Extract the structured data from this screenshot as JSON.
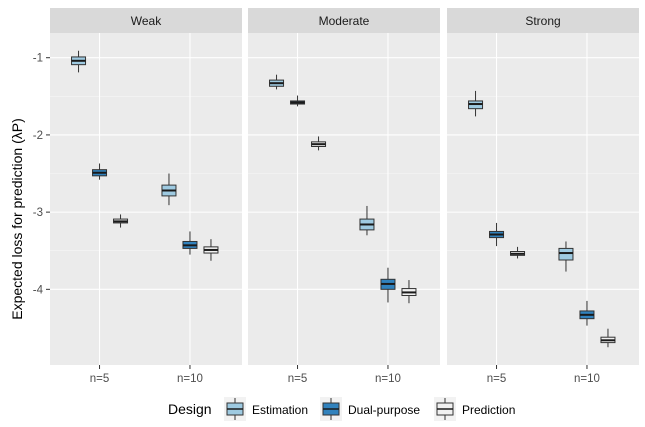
{
  "chart_data": {
    "type": "boxplot",
    "ylabel": "Expected loss for prediction (λP)",
    "ylim": [
      -4.98,
      -0.68
    ],
    "yticks": [
      -1,
      -2,
      -3,
      -4
    ],
    "ytick_labels": [
      "-1",
      "-2",
      "-3",
      "-4"
    ],
    "categories": [
      "n=5",
      "n=10"
    ],
    "legend": {
      "title": "Design",
      "position": "bottom",
      "entries": [
        {
          "name": "Estimation",
          "color": "#9ecae1"
        },
        {
          "name": "Dual-purpose",
          "color": "#3182bd"
        },
        {
          "name": "Prediction",
          "color": "#f0f0f0"
        }
      ]
    },
    "panels": [
      {
        "label": "Weak",
        "boxes": [
          {
            "category": "n=5",
            "design": "Estimation",
            "min": -1.19,
            "q1": -1.09,
            "median": -1.04,
            "q3": -0.99,
            "max": -0.91
          },
          {
            "category": "n=5",
            "design": "Dual-purpose",
            "min": -2.58,
            "q1": -2.53,
            "median": -2.49,
            "q3": -2.45,
            "max": -2.37
          },
          {
            "category": "n=5",
            "design": "Prediction",
            "min": -3.2,
            "q1": -3.14,
            "median": -3.12,
            "q3": -3.09,
            "max": -3.03
          },
          {
            "category": "n=10",
            "design": "Estimation",
            "min": -2.91,
            "q1": -2.79,
            "median": -2.72,
            "q3": -2.65,
            "max": -2.5
          },
          {
            "category": "n=10",
            "design": "Dual-purpose",
            "min": -3.55,
            "q1": -3.47,
            "median": -3.43,
            "q3": -3.38,
            "max": -3.25
          },
          {
            "category": "n=10",
            "design": "Prediction",
            "min": -3.63,
            "q1": -3.53,
            "median": -3.49,
            "q3": -3.45,
            "max": -3.35
          }
        ]
      },
      {
        "label": "Moderate",
        "boxes": [
          {
            "category": "n=5",
            "design": "Estimation",
            "min": -1.41,
            "q1": -1.37,
            "median": -1.33,
            "q3": -1.29,
            "max": -1.22
          },
          {
            "category": "n=5",
            "design": "Dual-purpose",
            "min": -1.63,
            "q1": -1.6,
            "median": -1.58,
            "q3": -1.56,
            "max": -1.49
          },
          {
            "category": "n=5",
            "design": "Prediction",
            "min": -2.2,
            "q1": -2.15,
            "median": -2.12,
            "q3": -2.09,
            "max": -2.02
          },
          {
            "category": "n=10",
            "design": "Estimation",
            "min": -3.3,
            "q1": -3.23,
            "median": -3.16,
            "q3": -3.09,
            "max": -2.92
          },
          {
            "category": "n=10",
            "design": "Dual-purpose",
            "min": -4.17,
            "q1": -4.0,
            "median": -3.93,
            "q3": -3.87,
            "max": -3.72
          },
          {
            "category": "n=10",
            "design": "Prediction",
            "min": -4.18,
            "q1": -4.08,
            "median": -4.04,
            "q3": -3.99,
            "max": -3.88
          }
        ]
      },
      {
        "label": "Strong",
        "boxes": [
          {
            "category": "n=5",
            "design": "Estimation",
            "min": -1.76,
            "q1": -1.66,
            "median": -1.6,
            "q3": -1.56,
            "max": -1.43
          },
          {
            "category": "n=5",
            "design": "Dual-purpose",
            "min": -3.44,
            "q1": -3.33,
            "median": -3.29,
            "q3": -3.25,
            "max": -3.14
          },
          {
            "category": "n=5",
            "design": "Prediction",
            "min": -3.6,
            "q1": -3.56,
            "median": -3.54,
            "q3": -3.51,
            "max": -3.45
          },
          {
            "category": "n=10",
            "design": "Estimation",
            "min": -3.77,
            "q1": -3.62,
            "median": -3.53,
            "q3": -3.47,
            "max": -3.38
          },
          {
            "category": "n=10",
            "design": "Dual-purpose",
            "min": -4.47,
            "q1": -4.38,
            "median": -4.33,
            "q3": -4.28,
            "max": -4.15
          },
          {
            "category": "n=10",
            "design": "Prediction",
            "min": -4.75,
            "q1": -4.69,
            "median": -4.66,
            "q3": -4.62,
            "max": -4.51
          }
        ]
      }
    ]
  }
}
